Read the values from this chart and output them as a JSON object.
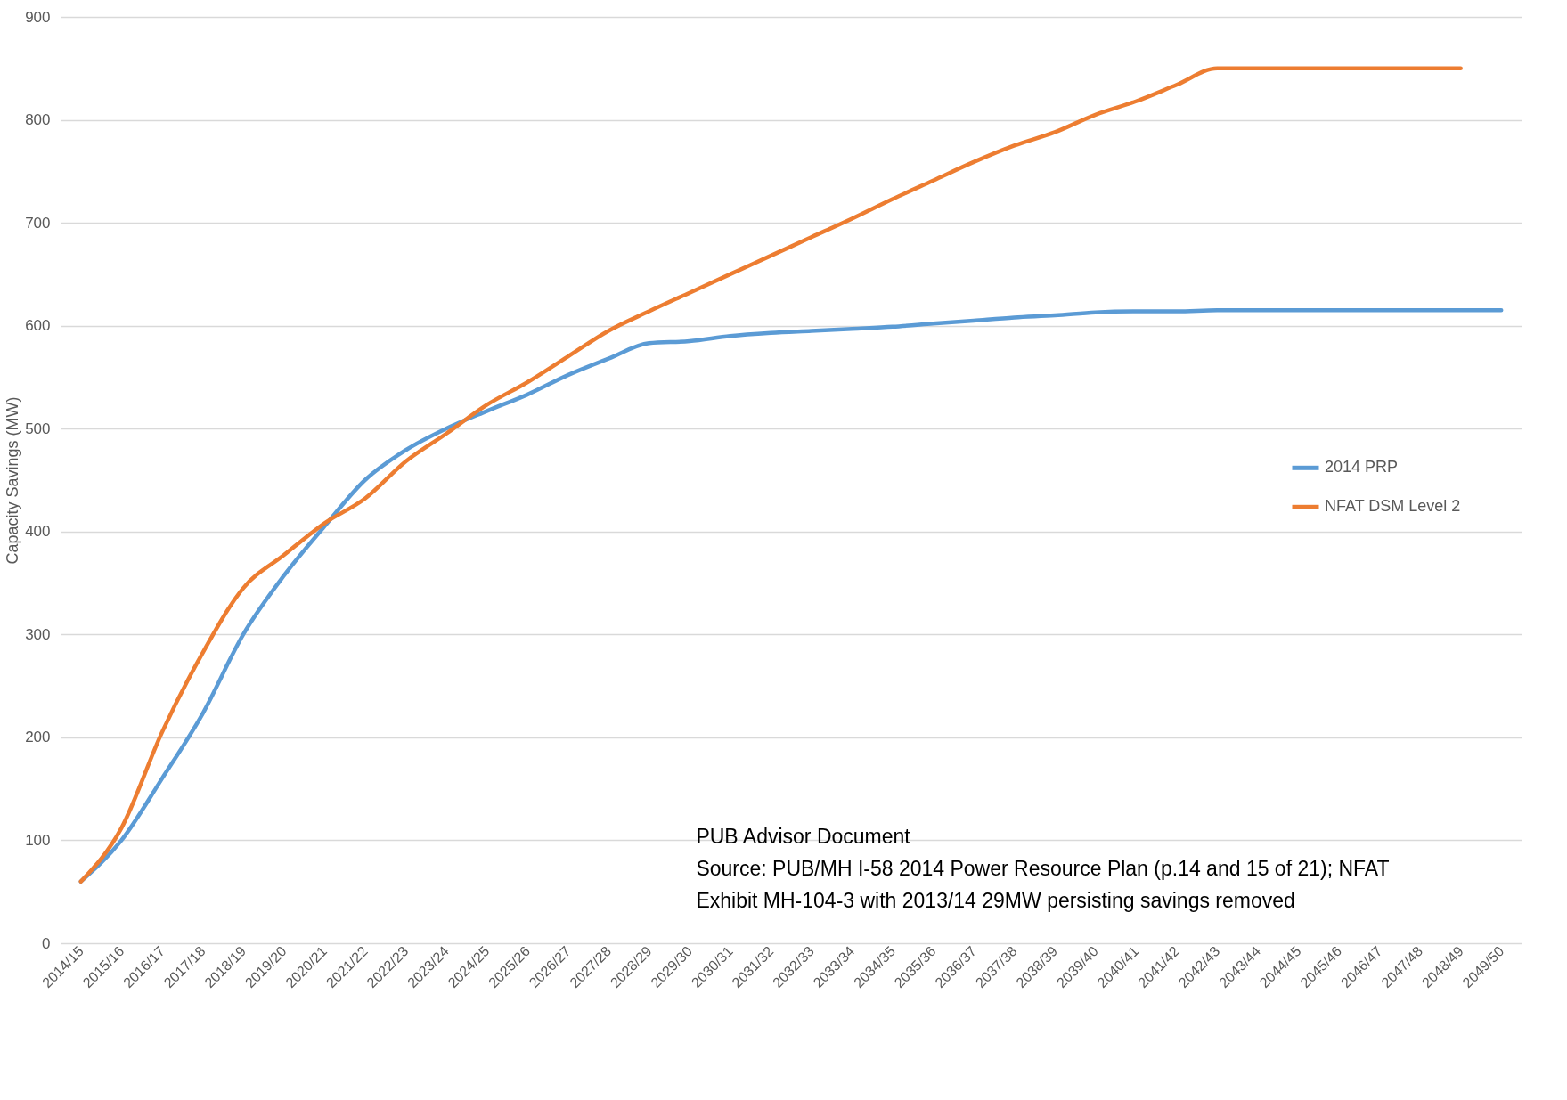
{
  "chart_data": {
    "type": "line",
    "ylabel": "Capacity Savings (MW)",
    "categories": [
      "2014/15",
      "2015/16",
      "2016/17",
      "2017/18",
      "2018/19",
      "2019/20",
      "2020/21",
      "2021/22",
      "2022/23",
      "2023/24",
      "2024/25",
      "2025/26",
      "2026/27",
      "2027/28",
      "2028/29",
      "2029/30",
      "2030/31",
      "2031/32",
      "2032/33",
      "2033/34",
      "2034/35",
      "2035/36",
      "2036/37",
      "2037/38",
      "2038/39",
      "2039/40",
      "2040/41",
      "2041/42",
      "2042/43",
      "2043/44",
      "2044/45",
      "2045/46",
      "2046/47",
      "2047/48",
      "2048/49",
      "2049/50"
    ],
    "series": [
      {
        "name": "2014 PRP",
        "color": "#5b9bd5",
        "values": [
          60,
          100,
          160,
          223,
          300,
          357,
          405,
          450,
          479,
          500,
          517,
          533,
          552,
          568,
          583,
          585,
          590,
          593,
          595,
          597,
          599,
          602,
          605,
          608,
          610,
          613,
          614,
          614,
          615,
          615,
          615,
          615,
          615,
          615,
          615,
          615
        ]
      },
      {
        "name": "NFAT DSM Level 2",
        "color": "#ed7d31",
        "values": [
          60,
          112,
          205,
          282,
          345,
          377,
          408,
          432,
          468,
          495,
          523,
          545,
          570,
          595,
          614,
          632,
          650,
          668,
          686,
          704,
          723,
          741,
          759,
          775,
          788,
          805,
          818,
          834,
          850,
          850,
          850,
          850,
          850,
          850,
          850,
          null
        ]
      }
    ],
    "ylim": [
      0,
      900
    ],
    "yticks": [
      0,
      100,
      200,
      300,
      400,
      500,
      600,
      700,
      800,
      900
    ],
    "grid": "y",
    "legend": "right",
    "marker": "none",
    "line_style": "solid",
    "annotations": [
      "PUB Advisor Document",
      "Source: PUB/MH I-58 2014 Power Resource Plan (p.14 and 15 of 21); NFAT",
      "Exhibit MH-104-3 with 2013/14 29MW persisting savings removed"
    ]
  }
}
